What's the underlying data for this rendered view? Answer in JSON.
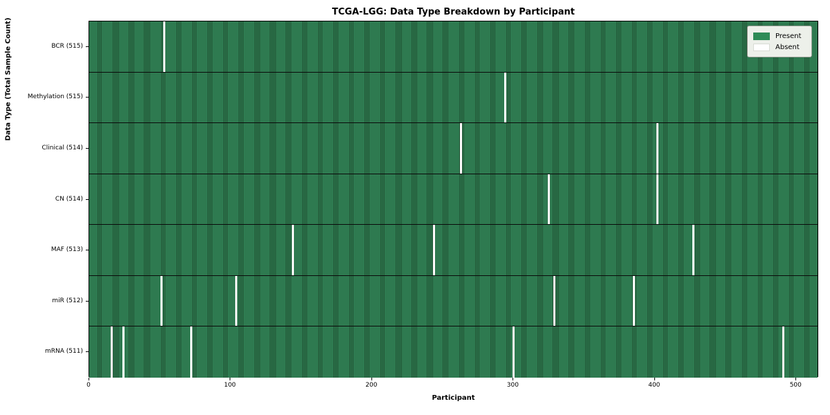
{
  "title": "TCGA-LGG: Data Type Breakdown by Participant",
  "xlabel": "Participant",
  "ylabel": "Data Type (Total Sample Count)",
  "legend": {
    "present_label": "Present",
    "absent_label": "Absent"
  },
  "colors": {
    "present": "#2e8b57",
    "present_stripe_dark": "#1b4429",
    "absent": "#ffffff",
    "legend_bg": "#edf0ea"
  },
  "chart_data": {
    "type": "heatmap",
    "title": "TCGA-LGG: Data Type Breakdown by Participant",
    "xlabel": "Participant",
    "ylabel": "Data Type (Total Sample Count)",
    "legend_entries": [
      "Present",
      "Absent"
    ],
    "legend_position": "upper right",
    "x_axis": {
      "range": [
        0,
        516
      ],
      "ticks": [
        0,
        100,
        200,
        300,
        400,
        500
      ]
    },
    "total_participants": 516,
    "rows": [
      {
        "label": "BCR (515)",
        "data_type": "BCR",
        "sample_count": 515,
        "absent_participants": [
          53
        ]
      },
      {
        "label": "Methylation (515)",
        "data_type": "Methylation",
        "sample_count": 515,
        "absent_participants": [
          294
        ]
      },
      {
        "label": "Clinical (514)",
        "data_type": "Clinical",
        "sample_count": 514,
        "absent_participants": [
          263,
          402
        ]
      },
      {
        "label": "CN (514)",
        "data_type": "CN",
        "sample_count": 514,
        "absent_participants": [
          325,
          402
        ]
      },
      {
        "label": "MAF (513)",
        "data_type": "MAF",
        "sample_count": 513,
        "absent_participants": [
          144,
          244,
          427
        ]
      },
      {
        "label": "miR (512)",
        "data_type": "miR",
        "sample_count": 512,
        "absent_participants": [
          51,
          104,
          329,
          385
        ]
      },
      {
        "label": "mRNA (511)",
        "data_type": "mRNA",
        "sample_count": 511,
        "absent_participants": [
          16,
          24,
          72,
          300,
          491
        ]
      }
    ]
  }
}
